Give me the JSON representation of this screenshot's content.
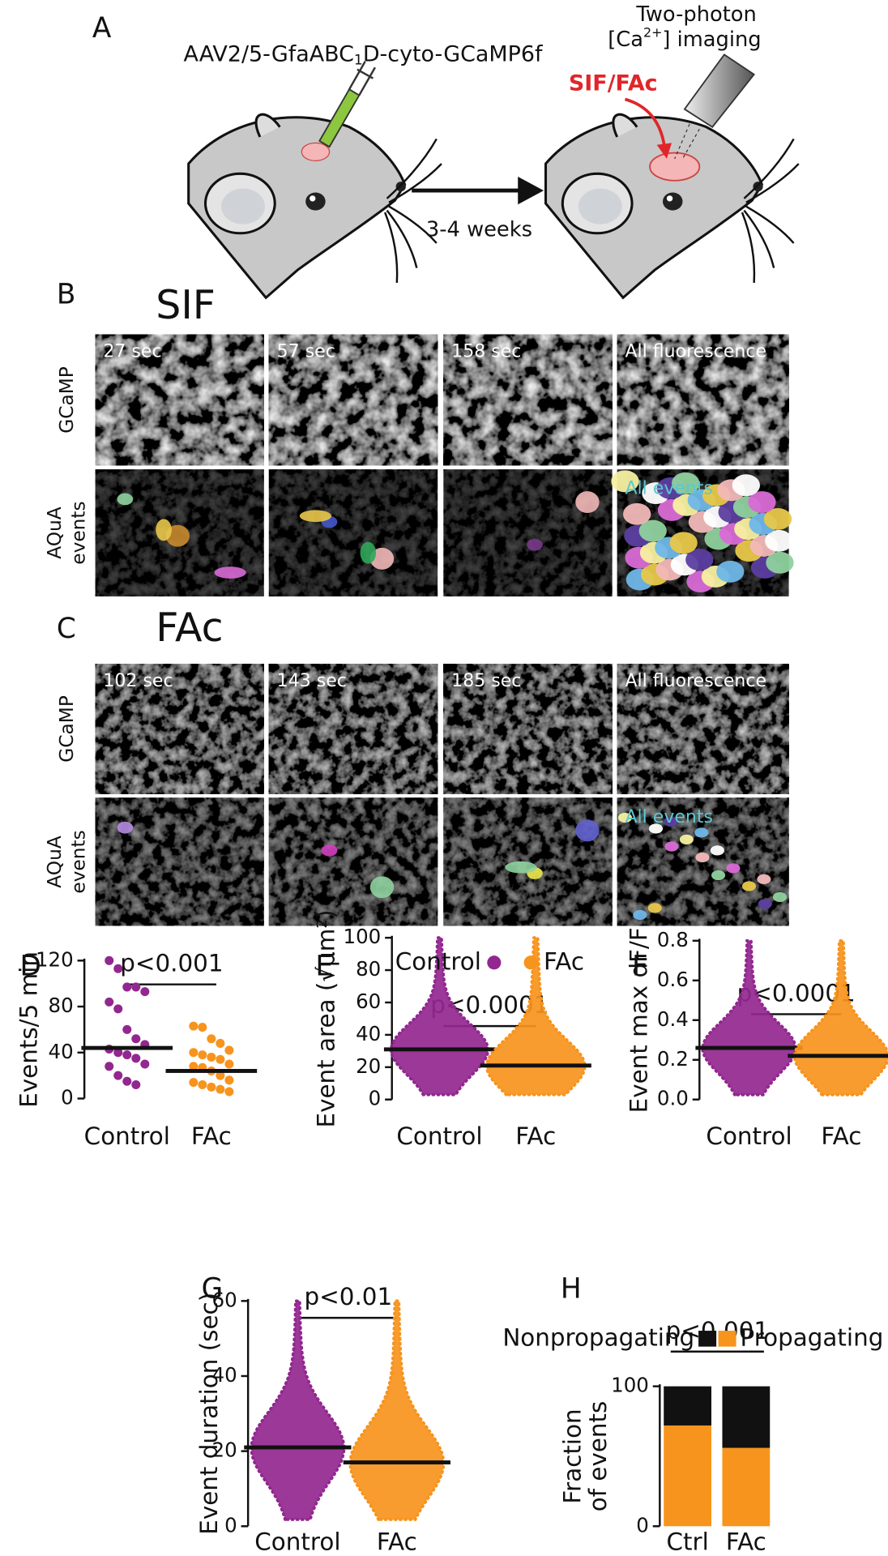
{
  "figure": {
    "panel_labels": [
      "A",
      "B",
      "C",
      "D",
      "E",
      "F",
      "G",
      "H"
    ],
    "schematic": {
      "virus": [
        "AAV2/5-GfaABC",
        "1",
        "D-cyto-GCaMP6f"
      ],
      "delay": "3-4 weeks",
      "treatment": "SIF/FAc",
      "imaging": [
        "Two-photon",
        "[Ca",
        "2+",
        "] imaging"
      ]
    },
    "imaging": {
      "row_labels": [
        "GCaMP",
        [
          "AQuA",
          "events"
        ]
      ],
      "overlay_label": "All events",
      "groups": [
        {
          "title": "SIF",
          "frames": [
            "27 sec",
            "57 sec",
            "158 sec",
            "All fluorescence"
          ]
        },
        {
          "title": "FAc",
          "frames": [
            "102 sec",
            "143 sec",
            "185 sec",
            "All fluorescence"
          ]
        }
      ]
    }
  },
  "chart_data": [
    {
      "type": "strip",
      "ylabel": "Events/5 min",
      "annotation": "p<0.001",
      "categories": [
        "Control",
        "FAc"
      ],
      "colors": [
        "#92278f",
        "#f7941d"
      ],
      "points": [
        [
          120,
          113,
          97,
          97,
          93,
          84,
          78,
          60,
          52,
          47,
          43,
          40,
          38,
          35,
          30,
          28,
          20,
          15,
          12
        ],
        [
          63,
          62,
          52,
          48,
          42,
          40,
          38,
          36,
          34,
          30,
          28,
          27,
          24,
          20,
          16,
          14,
          12,
          10,
          8,
          6
        ]
      ],
      "values": [
        44,
        24
      ],
      "ylim": [
        0,
        120
      ],
      "yticks": [
        0,
        40,
        80,
        120
      ]
    },
    {
      "type": "swarm",
      "ylabel": "Event area (√μm²)",
      "annotation": "p<0.0001",
      "legend": true,
      "categories": [
        "Control",
        "FAc"
      ],
      "colors": [
        "#92278f",
        "#f7941d"
      ],
      "values": [
        31,
        21
      ],
      "ylim": [
        0,
        100
      ],
      "yticks": [
        0,
        20,
        40,
        60,
        80,
        100
      ]
    },
    {
      "type": "swarm",
      "ylabel": "Event max dF/F",
      "annotation": "p<0.0001",
      "categories": [
        "Control",
        "FAc"
      ],
      "colors": [
        "#92278f",
        "#f7941d"
      ],
      "values": [
        0.26,
        0.22
      ],
      "ylim": [
        0,
        0.8
      ],
      "yticks": [
        {
          "value": 0,
          "label": "0.0"
        },
        0.2,
        0.4,
        0.6,
        0.8
      ]
    },
    {
      "type": "swarm",
      "ylabel": "Event duration (sec)",
      "annotation": "p<0.01",
      "categories": [
        "Control",
        "FAc"
      ],
      "colors": [
        "#92278f",
        "#f7941d"
      ],
      "values": [
        21,
        17
      ],
      "ylim": [
        0,
        60
      ],
      "yticks": [
        0,
        20,
        40,
        60
      ]
    },
    {
      "type": "stacked-bar",
      "ylabel": [
        "Fraction",
        "of events"
      ],
      "annotation": "p<0.001",
      "categories": [
        "Ctrl",
        "FAc"
      ],
      "series": [
        {
          "name": "Propagating",
          "color": "#f7941d",
          "values": [
            72,
            56
          ]
        },
        {
          "name": "Nonpropagating",
          "color": "#111111",
          "values": [
            28,
            44
          ]
        }
      ],
      "ylim": [
        0,
        100
      ],
      "yticks": [
        0,
        100
      ]
    }
  ]
}
